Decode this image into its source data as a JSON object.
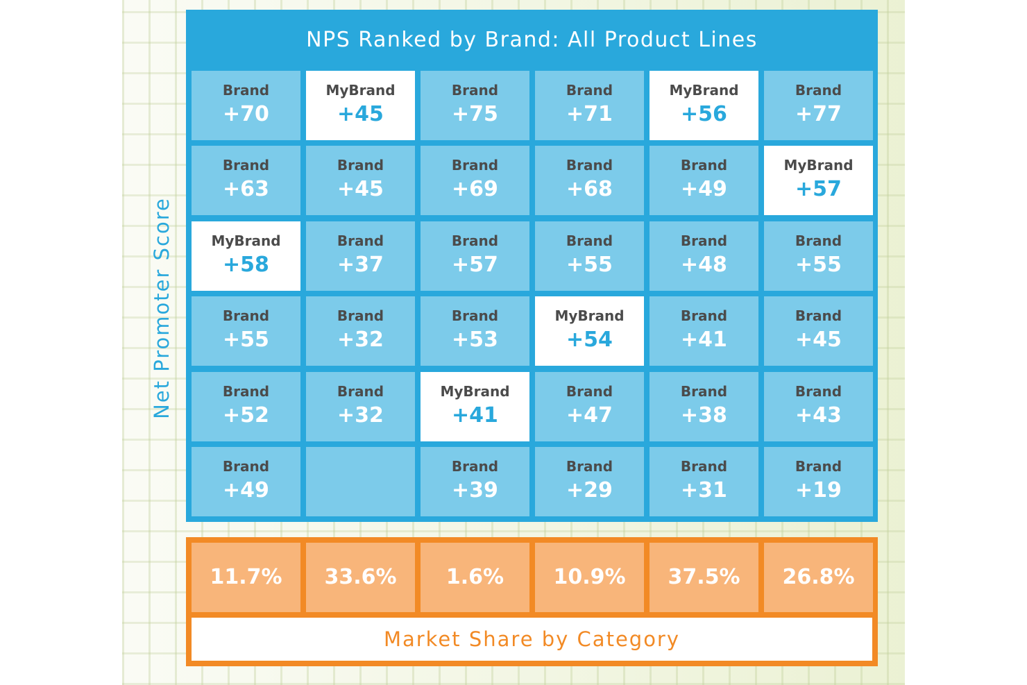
{
  "chart_data": {
    "type": "table",
    "title": "NPS Ranked by Brand: All Product Lines",
    "ylabel": "Net Promoter Score",
    "xlabel": "Market Share by Category",
    "categories": [
      "11.7%",
      "33.6%",
      "1.6%",
      "10.9%",
      "37.5%",
      "26.8%"
    ],
    "market_share_percent": [
      11.7,
      33.6,
      1.6,
      10.9,
      37.5,
      26.8
    ],
    "rows": [
      [
        {
          "label": "Brand",
          "score": "+70"
        },
        {
          "label": "MyBrand",
          "score": "+45",
          "highlight": true
        },
        {
          "label": "Brand",
          "score": "+75"
        },
        {
          "label": "Brand",
          "score": "+71"
        },
        {
          "label": "MyBrand",
          "score": "+56",
          "highlight": true
        },
        {
          "label": "Brand",
          "score": "+77"
        }
      ],
      [
        {
          "label": "Brand",
          "score": "+63"
        },
        {
          "label": "Brand",
          "score": "+45"
        },
        {
          "label": "Brand",
          "score": "+69"
        },
        {
          "label": "Brand",
          "score": "+68"
        },
        {
          "label": "Brand",
          "score": "+49"
        },
        {
          "label": "MyBrand",
          "score": "+57",
          "highlight": true
        }
      ],
      [
        {
          "label": "MyBrand",
          "score": "+58",
          "highlight": true
        },
        {
          "label": "Brand",
          "score": "+37"
        },
        {
          "label": "Brand",
          "score": "+57"
        },
        {
          "label": "Brand",
          "score": "+55"
        },
        {
          "label": "Brand",
          "score": "+48"
        },
        {
          "label": "Brand",
          "score": "+55"
        }
      ],
      [
        {
          "label": "Brand",
          "score": "+55"
        },
        {
          "label": "Brand",
          "score": "+32"
        },
        {
          "label": "Brand",
          "score": "+53"
        },
        {
          "label": "MyBrand",
          "score": "+54",
          "highlight": true
        },
        {
          "label": "Brand",
          "score": "+41"
        },
        {
          "label": "Brand",
          "score": "+45"
        }
      ],
      [
        {
          "label": "Brand",
          "score": "+52"
        },
        {
          "label": "Brand",
          "score": "+32"
        },
        {
          "label": "MyBrand",
          "score": "+41",
          "highlight": true
        },
        {
          "label": "Brand",
          "score": "+47"
        },
        {
          "label": "Brand",
          "score": "+38"
        },
        {
          "label": "Brand",
          "score": "+43"
        }
      ],
      [
        {
          "label": "Brand",
          "score": "+49"
        },
        {
          "label": "",
          "score": ""
        },
        {
          "label": "Brand",
          "score": "+39"
        },
        {
          "label": "Brand",
          "score": "+29"
        },
        {
          "label": "Brand",
          "score": "+31"
        },
        {
          "label": "Brand",
          "score": "+19"
        }
      ]
    ],
    "colors": {
      "frame": "#29a8dc",
      "cell": "#7ccbea",
      "highlight_cell": "#ffffff",
      "share_frame": "#f28a25",
      "share_cell": "#f8b57a"
    }
  }
}
